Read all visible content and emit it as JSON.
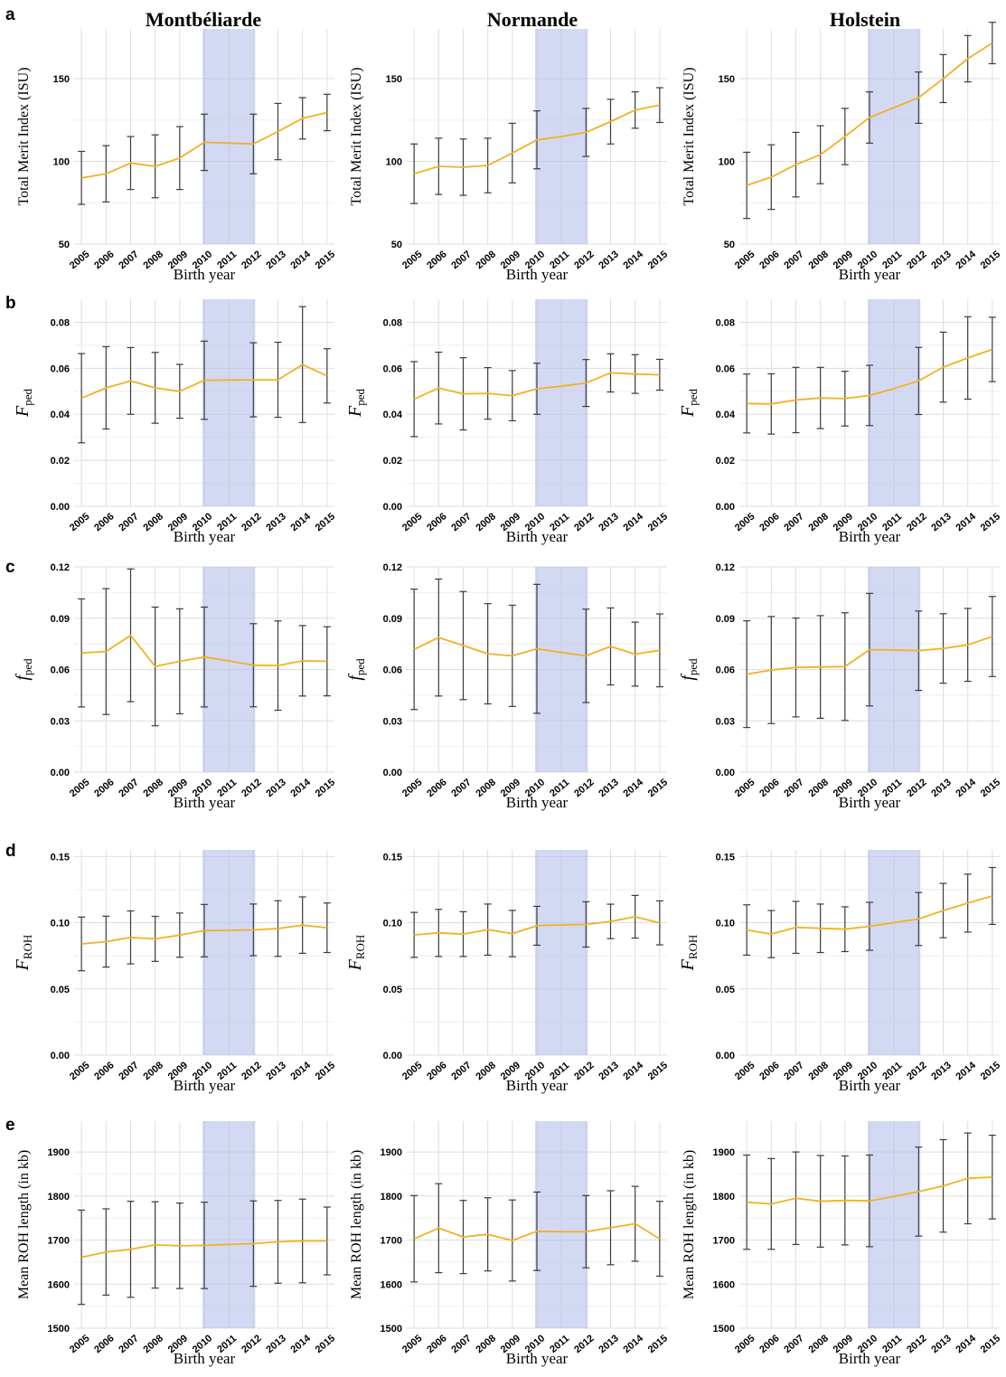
{
  "colors": {
    "line": "#F2B124",
    "errorbar": "#3c3c3c",
    "highlight": "#B8C2EC",
    "grid": "#dedede",
    "text": "#000000"
  },
  "column_titles": [
    "Montbéliarde",
    "Normande",
    "Holstein"
  ],
  "row_labels": [
    "a",
    "b",
    "c",
    "d",
    "e"
  ],
  "chart_data": [
    {
      "type": "line",
      "row": "a",
      "breed": "Montbéliarde",
      "title": "Montbéliarde",
      "xlabel": "Birth year",
      "ylabel": "Total Merit Index (ISU)",
      "ylabel_sub": "",
      "x": [
        2005,
        2006,
        2007,
        2008,
        2009,
        2010,
        2011,
        2012,
        2013,
        2014,
        2015
      ],
      "x_tick_labels": [
        "2005",
        "2006",
        "2007",
        "2008",
        "2009",
        "2010",
        "2011",
        "2012",
        "2013",
        "2014",
        "2015"
      ],
      "y": [
        90,
        92.5,
        99,
        97,
        102,
        111.5,
        111,
        110.5,
        118,
        126,
        129.5
      ],
      "err": [
        16,
        17,
        16,
        19,
        19,
        17,
        null,
        18,
        17,
        12.5,
        11
      ],
      "ylim": [
        50,
        180
      ],
      "yticks": [
        50,
        100,
        150
      ],
      "ytick_labels": [
        "50",
        "100",
        "150"
      ],
      "highlight_x": [
        2010,
        2012
      ],
      "grid": true
    },
    {
      "type": "line",
      "row": "a",
      "breed": "Normande",
      "title": "Normande",
      "xlabel": "Birth year",
      "ylabel": "Total Merit Index (ISU)",
      "ylabel_sub": "",
      "x": [
        2005,
        2006,
        2007,
        2008,
        2009,
        2010,
        2011,
        2012,
        2013,
        2014,
        2015
      ],
      "x_tick_labels": [
        "2005",
        "2006",
        "2007",
        "2008",
        "2009",
        "2010",
        "2011",
        "2012",
        "2013",
        "2014",
        "2015"
      ],
      "y": [
        92.5,
        97,
        96.5,
        97.5,
        105,
        113,
        115,
        117.5,
        124,
        131,
        134
      ],
      "err": [
        18,
        17,
        17,
        16.5,
        18,
        17.5,
        null,
        14.5,
        13.5,
        11,
        10.5
      ],
      "ylim": [
        50,
        180
      ],
      "yticks": [
        50,
        100,
        150
      ],
      "ytick_labels": [
        "50",
        "100",
        "150"
      ],
      "highlight_x": [
        2010,
        2012
      ],
      "grid": true
    },
    {
      "type": "line",
      "row": "a",
      "breed": "Holstein",
      "title": "Holstein",
      "xlabel": "Birth year",
      "ylabel": "Total Merit Index (ISU)",
      "ylabel_sub": "",
      "x": [
        2005,
        2006,
        2007,
        2008,
        2009,
        2010,
        2011,
        2012,
        2013,
        2014,
        2015
      ],
      "x_tick_labels": [
        "2005",
        "2006",
        "2007",
        "2008",
        "2009",
        "2010",
        "2011",
        "2012",
        "2013",
        "2014",
        "2015"
      ],
      "y": [
        85.5,
        90.5,
        98,
        104,
        115,
        126.5,
        132.5,
        138.5,
        150,
        162,
        171.5
      ],
      "err": [
        20,
        19.5,
        19.5,
        17.5,
        17,
        15.5,
        null,
        15.5,
        14.5,
        14,
        12.5
      ],
      "ylim": [
        50,
        180
      ],
      "yticks": [
        50,
        100,
        150
      ],
      "ytick_labels": [
        "50",
        "100",
        "150"
      ],
      "highlight_x": [
        2010,
        2012
      ],
      "grid": true
    },
    {
      "type": "line",
      "row": "b",
      "breed": "Montbéliarde",
      "title": "",
      "xlabel": "Birth year",
      "ylabel": "F",
      "ylabel_sub": "ped",
      "x": [
        2005,
        2006,
        2007,
        2008,
        2009,
        2010,
        2011,
        2012,
        2013,
        2014,
        2015
      ],
      "x_tick_labels": [
        "2005",
        "2006",
        "2007",
        "2008",
        "2009",
        "2010",
        "2011",
        "2012",
        "2013",
        "2014",
        "2015"
      ],
      "y": [
        0.047,
        0.0515,
        0.0545,
        0.0515,
        0.05,
        0.0548,
        0.0549,
        0.055,
        0.055,
        0.0616,
        0.0567
      ],
      "err": [
        0.0194,
        0.0179,
        0.0145,
        0.0154,
        0.0117,
        0.017,
        null,
        0.0161,
        0.0163,
        0.0252,
        0.0118
      ],
      "ylim": [
        0,
        0.09
      ],
      "yticks": [
        0,
        0.02,
        0.04,
        0.06,
        0.08
      ],
      "ytick_labels": [
        "0.00",
        "0.02",
        "0.04",
        "0.06",
        "0.08"
      ],
      "highlight_x": [
        2010,
        2012
      ],
      "grid": true
    },
    {
      "type": "line",
      "row": "b",
      "breed": "Normande",
      "title": "",
      "xlabel": "Birth year",
      "ylabel": "F",
      "ylabel_sub": "ped",
      "x": [
        2005,
        2006,
        2007,
        2008,
        2009,
        2010,
        2011,
        2012,
        2013,
        2014,
        2015
      ],
      "x_tick_labels": [
        "2005",
        "2006",
        "2007",
        "2008",
        "2009",
        "2010",
        "2011",
        "2012",
        "2013",
        "2014",
        "2015"
      ],
      "y": [
        0.0466,
        0.0514,
        0.0489,
        0.0491,
        0.0481,
        0.0511,
        0.0522,
        0.0536,
        0.058,
        0.0575,
        0.0572
      ],
      "err": [
        0.0163,
        0.0156,
        0.0157,
        0.0112,
        0.0109,
        0.0111,
        null,
        0.0102,
        0.0083,
        0.0084,
        0.0067
      ],
      "ylim": [
        0,
        0.09
      ],
      "yticks": [
        0,
        0.02,
        0.04,
        0.06,
        0.08
      ],
      "ytick_labels": [
        "0.00",
        "0.02",
        "0.04",
        "0.06",
        "0.08"
      ],
      "highlight_x": [
        2010,
        2012
      ],
      "grid": true
    },
    {
      "type": "line",
      "row": "b",
      "breed": "Holstein",
      "title": "",
      "xlabel": "Birth year",
      "ylabel": "F",
      "ylabel_sub": "ped",
      "x": [
        2005,
        2006,
        2007,
        2008,
        2009,
        2010,
        2011,
        2012,
        2013,
        2014,
        2015
      ],
      "x_tick_labels": [
        "2005",
        "2006",
        "2007",
        "2008",
        "2009",
        "2010",
        "2011",
        "2012",
        "2013",
        "2014",
        "2015"
      ],
      "y": [
        0.0447,
        0.0445,
        0.0462,
        0.0471,
        0.0468,
        0.0482,
        0.0512,
        0.0545,
        0.0605,
        0.0645,
        0.0682
      ],
      "err": [
        0.0128,
        0.0131,
        0.0142,
        0.0133,
        0.0119,
        0.0131,
        null,
        0.0146,
        0.0152,
        0.0179,
        0.014
      ],
      "ylim": [
        0,
        0.09
      ],
      "yticks": [
        0,
        0.02,
        0.04,
        0.06,
        0.08
      ],
      "ytick_labels": [
        "0.00",
        "0.02",
        "0.04",
        "0.06",
        "0.08"
      ],
      "highlight_x": [
        2010,
        2012
      ],
      "grid": true
    },
    {
      "type": "line",
      "row": "c",
      "breed": "Montbéliarde",
      "title": "",
      "xlabel": "Birth year",
      "ylabel": "f",
      "ylabel_sub": "ped",
      "x": [
        2005,
        2006,
        2007,
        2008,
        2009,
        2010,
        2011,
        2012,
        2013,
        2014,
        2015
      ],
      "x_tick_labels": [
        "2005",
        "2006",
        "2007",
        "2008",
        "2009",
        "2010",
        "2011",
        "2012",
        "2013",
        "2014",
        "2015"
      ],
      "y": [
        0.0697,
        0.0705,
        0.08,
        0.0618,
        0.0648,
        0.0673,
        0.065,
        0.0625,
        0.0623,
        0.0651,
        0.0648
      ],
      "err": [
        0.0316,
        0.0368,
        0.0388,
        0.0347,
        0.0307,
        0.0292,
        null,
        0.0243,
        0.0261,
        0.0206,
        0.0202
      ],
      "ylim": [
        0,
        0.12
      ],
      "yticks": [
        0,
        0.03,
        0.06,
        0.09,
        0.12
      ],
      "ytick_labels": [
        "0.00",
        "0.03",
        "0.06",
        "0.09",
        "0.12"
      ],
      "highlight_x": [
        2010,
        2012
      ],
      "grid": true
    },
    {
      "type": "line",
      "row": "c",
      "breed": "Normande",
      "title": "",
      "xlabel": "Birth year",
      "ylabel": "f",
      "ylabel_sub": "ped",
      "x": [
        2005,
        2006,
        2007,
        2008,
        2009,
        2010,
        2011,
        2012,
        2013,
        2014,
        2015
      ],
      "x_tick_labels": [
        "2005",
        "2006",
        "2007",
        "2008",
        "2009",
        "2010",
        "2011",
        "2012",
        "2013",
        "2014",
        "2015"
      ],
      "y": [
        0.0718,
        0.0787,
        0.074,
        0.0692,
        0.068,
        0.0721,
        0.07,
        0.068,
        0.0735,
        0.069,
        0.0712
      ],
      "err": [
        0.0352,
        0.0342,
        0.0316,
        0.0293,
        0.0296,
        0.0377,
        null,
        0.0273,
        0.0225,
        0.0187,
        0.0213
      ],
      "ylim": [
        0,
        0.12
      ],
      "yticks": [
        0,
        0.03,
        0.06,
        0.09,
        0.12
      ],
      "ytick_labels": [
        "0.00",
        "0.03",
        "0.06",
        "0.09",
        "0.12"
      ],
      "highlight_x": [
        2010,
        2012
      ],
      "grid": true
    },
    {
      "type": "line",
      "row": "c",
      "breed": "Holstein",
      "title": "",
      "xlabel": "Birth year",
      "ylabel": "f",
      "ylabel_sub": "ped",
      "x": [
        2005,
        2006,
        2007,
        2008,
        2009,
        2010,
        2011,
        2012,
        2013,
        2014,
        2015
      ],
      "x_tick_labels": [
        "2005",
        "2006",
        "2007",
        "2008",
        "2009",
        "2010",
        "2011",
        "2012",
        "2013",
        "2014",
        "2015"
      ],
      "y": [
        0.0573,
        0.0597,
        0.0612,
        0.0615,
        0.0617,
        0.0716,
        0.0714,
        0.071,
        0.0723,
        0.0744,
        0.0793
      ],
      "err": [
        0.0312,
        0.0313,
        0.0289,
        0.03,
        0.0315,
        0.0329,
        null,
        0.0232,
        0.0203,
        0.0213,
        0.0234
      ],
      "ylim": [
        0,
        0.12
      ],
      "yticks": [
        0,
        0.03,
        0.06,
        0.09,
        0.12
      ],
      "ytick_labels": [
        "0.00",
        "0.03",
        "0.06",
        "0.09",
        "0.12"
      ],
      "highlight_x": [
        2010,
        2012
      ],
      "grid": true
    },
    {
      "type": "line",
      "row": "d",
      "breed": "Montbéliarde",
      "title": "",
      "xlabel": "Birth year",
      "ylabel": "F",
      "ylabel_sub": "ROH",
      "x": [
        2005,
        2006,
        2007,
        2008,
        2009,
        2010,
        2011,
        2012,
        2013,
        2014,
        2015
      ],
      "x_tick_labels": [
        "2005",
        "2006",
        "2007",
        "2008",
        "2009",
        "2010",
        "2011",
        "2012",
        "2013",
        "2014",
        "2015"
      ],
      "y": [
        0.084,
        0.0857,
        0.0889,
        0.0878,
        0.0906,
        0.094,
        0.0942,
        0.0946,
        0.0956,
        0.0982,
        0.0962
      ],
      "err": [
        0.0203,
        0.0192,
        0.02,
        0.017,
        0.0167,
        0.0198,
        null,
        0.0195,
        0.021,
        0.0213,
        0.0187
      ],
      "ylim": [
        0,
        0.155
      ],
      "yticks": [
        0,
        0.05,
        0.1,
        0.15
      ],
      "ytick_labels": [
        "0.00",
        "0.05",
        "0.10",
        "0.15"
      ],
      "highlight_x": [
        2010,
        2012
      ],
      "grid": true
    },
    {
      "type": "line",
      "row": "d",
      "breed": "Normande",
      "title": "",
      "xlabel": "Birth year",
      "ylabel": "F",
      "ylabel_sub": "ROH",
      "x": [
        2005,
        2006,
        2007,
        2008,
        2009,
        2010,
        2011,
        2012,
        2013,
        2014,
        2015
      ],
      "x_tick_labels": [
        "2005",
        "2006",
        "2007",
        "2008",
        "2009",
        "2010",
        "2011",
        "2012",
        "2013",
        "2014",
        "2015"
      ],
      "y": [
        0.0908,
        0.0923,
        0.0914,
        0.0948,
        0.0918,
        0.0977,
        0.0984,
        0.0987,
        0.101,
        0.1045,
        0.0999
      ],
      "err": [
        0.017,
        0.0178,
        0.0169,
        0.0193,
        0.0175,
        0.0147,
        null,
        0.0171,
        0.013,
        0.0161,
        0.0166
      ],
      "ylim": [
        0,
        0.155
      ],
      "yticks": [
        0,
        0.05,
        0.1,
        0.15
      ],
      "ytick_labels": [
        "0.00",
        "0.05",
        "0.10",
        "0.15"
      ],
      "highlight_x": [
        2010,
        2012
      ],
      "grid": true
    },
    {
      "type": "line",
      "row": "d",
      "breed": "Holstein",
      "title": "",
      "xlabel": "Birth year",
      "ylabel": "F",
      "ylabel_sub": "ROH",
      "x": [
        2005,
        2006,
        2007,
        2008,
        2009,
        2010,
        2011,
        2012,
        2013,
        2014,
        2015
      ],
      "x_tick_labels": [
        "2005",
        "2006",
        "2007",
        "2008",
        "2009",
        "2010",
        "2011",
        "2012",
        "2013",
        "2014",
        "2015"
      ],
      "y": [
        0.0945,
        0.0914,
        0.0965,
        0.0958,
        0.0951,
        0.0973,
        0.1,
        0.1028,
        0.1092,
        0.1148,
        0.1202
      ],
      "err": [
        0.019,
        0.0178,
        0.0196,
        0.0183,
        0.0169,
        0.0181,
        null,
        0.02,
        0.0205,
        0.0219,
        0.0215
      ],
      "ylim": [
        0,
        0.155
      ],
      "yticks": [
        0,
        0.05,
        0.1,
        0.15
      ],
      "ytick_labels": [
        "0.00",
        "0.05",
        "0.10",
        "0.15"
      ],
      "highlight_x": [
        2010,
        2012
      ],
      "grid": true
    },
    {
      "type": "line",
      "row": "e",
      "breed": "Montbéliarde",
      "title": "",
      "xlabel": "Birth year",
      "ylabel": "Mean ROH length (in kb)",
      "ylabel_sub": "",
      "x": [
        2005,
        2006,
        2007,
        2008,
        2009,
        2010,
        2011,
        2012,
        2013,
        2014,
        2015
      ],
      "x_tick_labels": [
        "2005",
        "2006",
        "2007",
        "2008",
        "2009",
        "2010",
        "2011",
        "2012",
        "2013",
        "2014",
        "2015"
      ],
      "y": [
        1661,
        1673,
        1679,
        1689,
        1687,
        1688,
        1690,
        1692,
        1696,
        1698,
        1698
      ],
      "err": [
        107,
        98,
        109,
        98,
        97,
        98,
        null,
        97,
        94,
        95,
        77
      ],
      "ylim": [
        1500,
        1970
      ],
      "yticks": [
        1500,
        1600,
        1700,
        1800,
        1900
      ],
      "ytick_labels": [
        "1500",
        "1600",
        "1700",
        "1800",
        "1900"
      ],
      "highlight_x": [
        2010,
        2012
      ],
      "grid": true
    },
    {
      "type": "line",
      "row": "e",
      "breed": "Normande",
      "title": "",
      "xlabel": "Birth year",
      "ylabel": "Mean ROH length (in kb)",
      "ylabel_sub": "",
      "x": [
        2005,
        2006,
        2007,
        2008,
        2009,
        2010,
        2011,
        2012,
        2013,
        2014,
        2015
      ],
      "x_tick_labels": [
        "2005",
        "2006",
        "2007",
        "2008",
        "2009",
        "2010",
        "2011",
        "2012",
        "2013",
        "2014",
        "2015"
      ],
      "y": [
        1703,
        1727,
        1707,
        1713,
        1699,
        1720,
        1719,
        1719,
        1728,
        1737,
        1703
      ],
      "err": [
        98,
        101,
        83,
        83,
        92,
        89,
        null,
        82,
        84,
        85,
        85
      ],
      "ylim": [
        1500,
        1970
      ],
      "yticks": [
        1500,
        1600,
        1700,
        1800,
        1900
      ],
      "ytick_labels": [
        "1500",
        "1600",
        "1700",
        "1800",
        "1900"
      ],
      "highlight_x": [
        2010,
        2012
      ],
      "grid": true
    },
    {
      "type": "line",
      "row": "e",
      "breed": "Holstein",
      "title": "",
      "xlabel": "Birth year",
      "ylabel": "Mean ROH length (in kb)",
      "ylabel_sub": "",
      "x": [
        2005,
        2006,
        2007,
        2008,
        2009,
        2010,
        2011,
        2012,
        2013,
        2014,
        2015
      ],
      "x_tick_labels": [
        "2005",
        "2006",
        "2007",
        "2008",
        "2009",
        "2010",
        "2011",
        "2012",
        "2013",
        "2014",
        "2015"
      ],
      "y": [
        1786,
        1782,
        1795,
        1788,
        1790,
        1789,
        1799,
        1810,
        1823,
        1840,
        1843
      ],
      "err": [
        107,
        103,
        105,
        104,
        101,
        104,
        null,
        101,
        105,
        103,
        95
      ],
      "ylim": [
        1500,
        1970
      ],
      "yticks": [
        1500,
        1600,
        1700,
        1800,
        1900
      ],
      "ytick_labels": [
        "1500",
        "1600",
        "1700",
        "1800",
        "1900"
      ],
      "highlight_x": [
        2010,
        2012
      ],
      "grid": true
    }
  ]
}
